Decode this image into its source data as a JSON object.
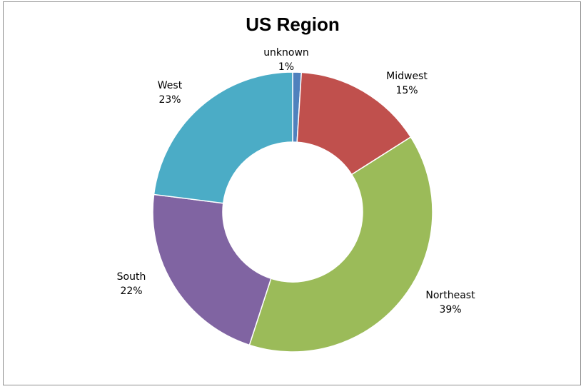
{
  "chart_data": {
    "type": "pie",
    "variant": "donut",
    "title": "US Region",
    "categories": [
      "unknown",
      "Midwest",
      "Northeast",
      "South",
      "West"
    ],
    "values": [
      1,
      15,
      39,
      22,
      23
    ],
    "value_labels": [
      "1%",
      "15%",
      "39%",
      "22%",
      "23%"
    ],
    "colors": [
      "#4F81BD",
      "#C0504D",
      "#9BBB59",
      "#8064A2",
      "#4BACC6"
    ],
    "legend": "none",
    "start_angle_deg": 0,
    "direction": "clockwise"
  }
}
